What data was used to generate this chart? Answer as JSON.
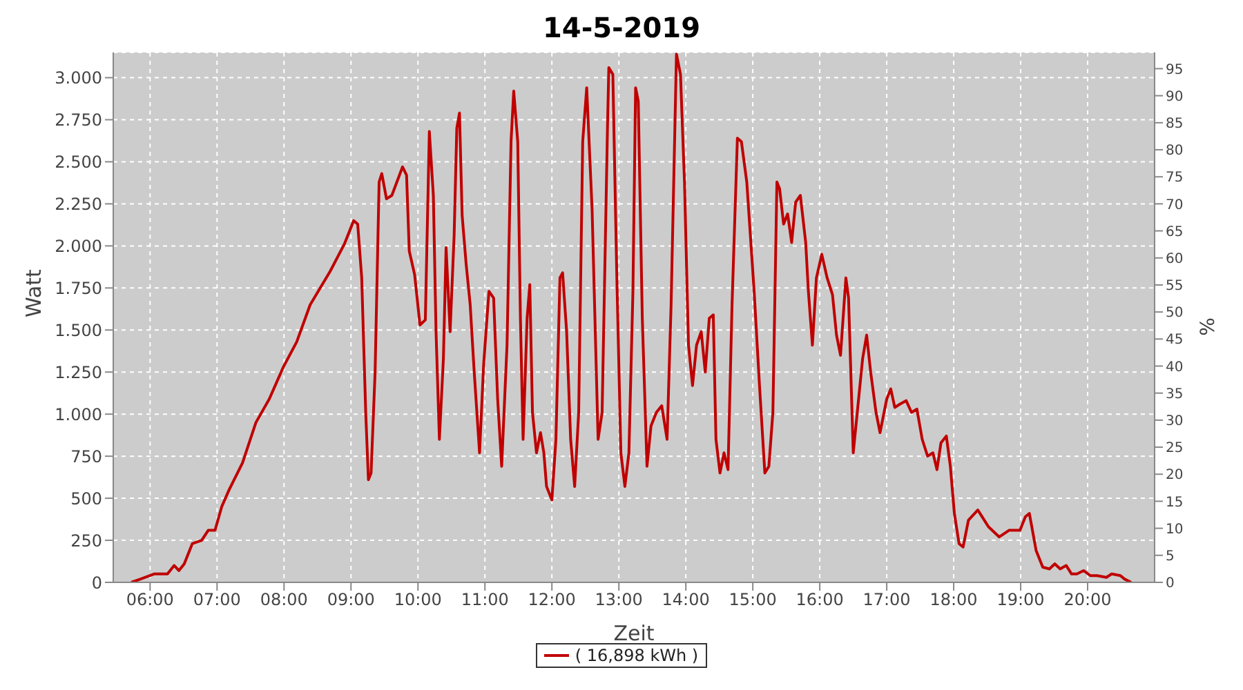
{
  "chart_data": {
    "type": "line",
    "title": "14-5-2019",
    "xlabel": "Zeit",
    "ylabel": "Watt",
    "y2label": "%",
    "xlim": [
      5.45,
      21.0
    ],
    "xticks": [
      {
        "value": 6,
        "label": "06:00"
      },
      {
        "value": 7,
        "label": "07:00"
      },
      {
        "value": 8,
        "label": "08:00"
      },
      {
        "value": 9,
        "label": "09:00"
      },
      {
        "value": 10,
        "label": "10:00"
      },
      {
        "value": 11,
        "label": "11:00"
      },
      {
        "value": 12,
        "label": "12:00"
      },
      {
        "value": 13,
        "label": "13:00"
      },
      {
        "value": 14,
        "label": "14:00"
      },
      {
        "value": 15,
        "label": "15:00"
      },
      {
        "value": 16,
        "label": "16:00"
      },
      {
        "value": 17,
        "label": "17:00"
      },
      {
        "value": 18,
        "label": "18:00"
      },
      {
        "value": 19,
        "label": "19:00"
      },
      {
        "value": 20,
        "label": "20:00"
      }
    ],
    "ylim": [
      0,
      3150
    ],
    "yticks": [
      0,
      250,
      500,
      750,
      {
        "value": 1000,
        "label": "1.000"
      },
      {
        "value": 1250,
        "label": "1.250"
      },
      {
        "value": 1500,
        "label": "1.500"
      },
      {
        "value": 1750,
        "label": "1.750"
      },
      {
        "value": 2000,
        "label": "2.000"
      },
      {
        "value": 2250,
        "label": "2.250"
      },
      {
        "value": 2500,
        "label": "2.500"
      },
      {
        "value": 2750,
        "label": "2.750"
      },
      {
        "value": 3000,
        "label": "3.000"
      }
    ],
    "y2lim": [
      0,
      98
    ],
    "y2ticks": [
      0,
      5,
      10,
      15,
      20,
      25,
      30,
      35,
      40,
      45,
      50,
      55,
      60,
      65,
      70,
      75,
      80,
      85,
      90,
      95
    ],
    "grid": true,
    "legend": "bottom",
    "marker": "none",
    "line_style": "solid",
    "series": [
      {
        "name": "( 16,898 kWh )",
        "color": "#c00000",
        "x": [
          5.72,
          5.86,
          6.06,
          6.26,
          6.36,
          6.43,
          6.51,
          6.63,
          6.77,
          6.87,
          6.97,
          7.07,
          7.18,
          7.38,
          7.58,
          7.78,
          7.99,
          8.19,
          8.39,
          8.69,
          8.9,
          9.04,
          9.1,
          9.16,
          9.22,
          9.26,
          9.3,
          9.36,
          9.42,
          9.46,
          9.53,
          9.61,
          9.77,
          9.83,
          9.87,
          9.95,
          10.03,
          10.11,
          10.17,
          10.23,
          10.27,
          10.32,
          10.38,
          10.42,
          10.48,
          10.54,
          10.58,
          10.62,
          10.66,
          10.72,
          10.78,
          10.84,
          10.92,
          10.98,
          11.06,
          11.13,
          11.19,
          11.25,
          11.33,
          11.39,
          11.43,
          11.49,
          11.53,
          11.57,
          11.63,
          11.67,
          11.71,
          11.77,
          11.83,
          11.88,
          11.92,
          12.0,
          12.06,
          12.12,
          12.16,
          12.22,
          12.28,
          12.34,
          12.4,
          12.46,
          12.52,
          12.6,
          12.69,
          12.75,
          12.83,
          12.85,
          12.91,
          12.97,
          13.03,
          13.09,
          13.15,
          13.21,
          13.25,
          13.29,
          13.35,
          13.42,
          13.48,
          13.56,
          13.64,
          13.72,
          13.78,
          13.86,
          13.92,
          13.98,
          14.04,
          14.1,
          14.16,
          14.23,
          14.29,
          14.35,
          14.41,
          14.45,
          14.51,
          14.57,
          14.63,
          14.69,
          14.77,
          14.83,
          14.91,
          15.02,
          15.1,
          15.18,
          15.24,
          15.3,
          15.36,
          15.4,
          15.46,
          15.52,
          15.58,
          15.64,
          15.71,
          15.79,
          15.83,
          15.89,
          15.95,
          16.03,
          16.11,
          16.19,
          16.25,
          16.31,
          16.39,
          16.43,
          16.5,
          16.56,
          16.64,
          16.7,
          16.76,
          16.84,
          16.9,
          17.0,
          17.06,
          17.12,
          17.2,
          17.29,
          17.37,
          17.45,
          17.53,
          17.61,
          17.69,
          17.75,
          17.81,
          17.89,
          17.95,
          18.01,
          18.08,
          18.14,
          18.22,
          18.36,
          18.52,
          18.68,
          18.83,
          18.99,
          19.07,
          19.13,
          19.23,
          19.33,
          19.43,
          19.51,
          19.59,
          19.68,
          19.76,
          19.84,
          19.94,
          20.04,
          20.14,
          20.28,
          20.36,
          20.49,
          20.55,
          20.65
        ],
        "values": [
          0,
          20,
          50,
          50,
          100,
          70,
          110,
          230,
          250,
          310,
          310,
          450,
          550,
          710,
          950,
          1090,
          1280,
          1430,
          1650,
          1850,
          2010,
          2150,
          2130,
          1810,
          1010,
          610,
          650,
          1250,
          2380,
          2430,
          2280,
          2300,
          2470,
          2420,
          1970,
          1830,
          1530,
          1560,
          2680,
          2300,
          1490,
          850,
          1330,
          1990,
          1490,
          2060,
          2700,
          2790,
          2180,
          1890,
          1650,
          1250,
          770,
          1290,
          1730,
          1690,
          1090,
          690,
          1410,
          2620,
          2920,
          2620,
          1570,
          850,
          1570,
          1770,
          1010,
          770,
          890,
          770,
          570,
          490,
          850,
          1810,
          1840,
          1490,
          850,
          570,
          1010,
          2620,
          2940,
          2220,
          850,
          1010,
          2700,
          3060,
          3020,
          1810,
          770,
          570,
          770,
          1730,
          2940,
          2860,
          1570,
          690,
          930,
          1010,
          1050,
          850,
          1650,
          3140,
          3020,
          2380,
          1410,
          1170,
          1410,
          1490,
          1250,
          1570,
          1590,
          850,
          650,
          770,
          670,
          1650,
          2640,
          2620,
          2380,
          1730,
          1170,
          650,
          690,
          1010,
          2380,
          2340,
          2130,
          2190,
          2020,
          2260,
          2300,
          2020,
          1730,
          1410,
          1810,
          1950,
          1810,
          1710,
          1470,
          1350,
          1810,
          1690,
          770,
          1010,
          1330,
          1470,
          1250,
          1010,
          890,
          1090,
          1150,
          1040,
          1060,
          1080,
          1010,
          1030,
          850,
          750,
          770,
          670,
          830,
          870,
          690,
          410,
          230,
          210,
          370,
          430,
          330,
          270,
          310,
          310,
          390,
          410,
          190,
          90,
          80,
          110,
          80,
          100,
          50,
          50,
          70,
          40,
          40,
          30,
          50,
          40,
          20,
          0
        ]
      }
    ]
  }
}
